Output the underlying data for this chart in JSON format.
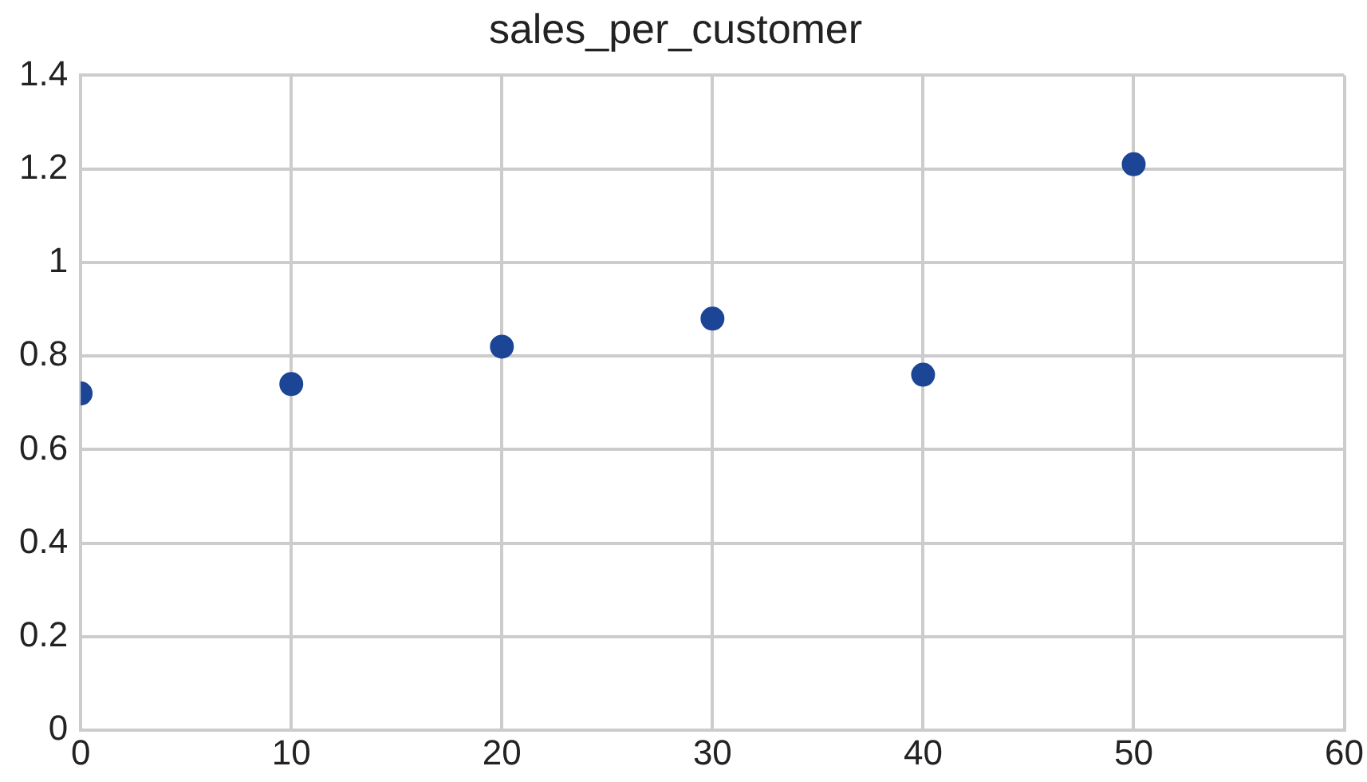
{
  "chart_data": {
    "type": "scatter",
    "title": "sales_per_customer",
    "x": [
      0,
      10,
      20,
      30,
      40,
      50
    ],
    "series": [
      {
        "color": "#1c4595",
        "values": [
          0.72,
          0.74,
          0.82,
          0.88,
          0.76,
          1.21
        ]
      }
    ],
    "xlim": [
      0,
      60
    ],
    "xticks": [
      0,
      10,
      20,
      30,
      40,
      50,
      60
    ],
    "ylim": [
      0,
      1.4
    ],
    "yticks": [
      0,
      0.2,
      0.4,
      0.6,
      0.8,
      1,
      1.2,
      1.4
    ],
    "grid": true,
    "legend": false,
    "marker": "circle"
  }
}
